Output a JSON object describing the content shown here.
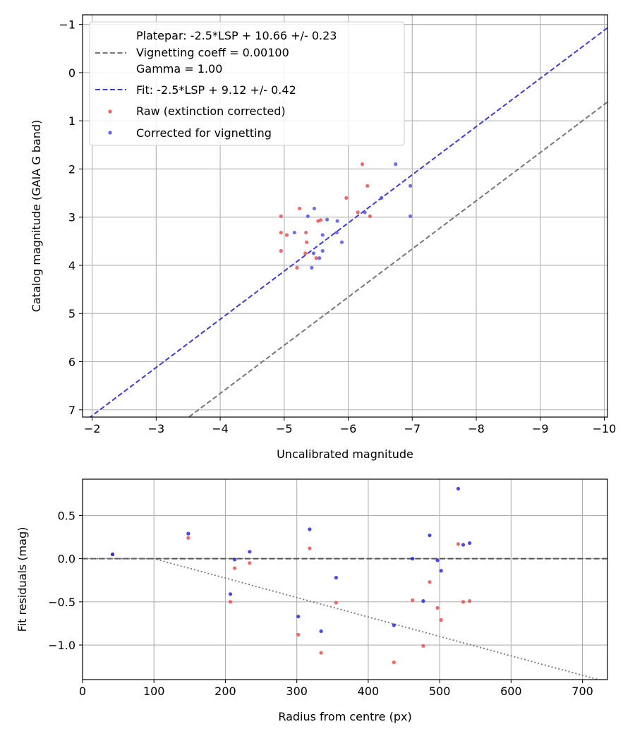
{
  "chart_data": [
    {
      "type": "scatter",
      "xlabel": "Uncalibrated magnitude",
      "ylabel": "Catalog magnitude (GAIA G band)",
      "xlim": [
        -1.85,
        -10.05
      ],
      "ylim": [
        7.15,
        -1.2
      ],
      "grid": true,
      "legend_position": "top-left",
      "x_ticks": [
        -2,
        -3,
        -4,
        -5,
        -6,
        -7,
        -8,
        -9,
        -10
      ],
      "x_tick_labels": [
        "−2",
        "−3",
        "−4",
        "−5",
        "−6",
        "−7",
        "−8",
        "−9",
        "−10"
      ],
      "y_ticks": [
        -1,
        0,
        1,
        2,
        3,
        4,
        5,
        6,
        7
      ],
      "y_tick_labels": [
        "−1",
        "0",
        "1",
        "2",
        "3",
        "4",
        "5",
        "6",
        "7"
      ],
      "legend": [
        "Platepar: -2.5*LSP + 10.66 +/- 0.23",
        "Vignetting coeff = 0.00100",
        "Gamma = 1.00",
        "Fit: -2.5*LSP + 9.12 +/- 0.42",
        "Raw (extinction corrected)",
        "Corrected for vignetting"
      ],
      "lines": [
        {
          "name": "Platepar",
          "slope": 1,
          "intercept": 10.66,
          "color": "#777777",
          "style": "dashed"
        },
        {
          "name": "Fit",
          "slope": 1,
          "intercept": 9.12,
          "color": "#3a3ae8",
          "style": "dashed"
        }
      ],
      "series": [
        {
          "name": "Raw (extinction corrected)",
          "color": "#ee4444",
          "points": [
            [
              -6.22,
              1.9
            ],
            [
              -6.3,
              2.35
            ],
            [
              -5.97,
              2.6
            ],
            [
              -6.15,
              2.9
            ],
            [
              -6.34,
              2.98
            ],
            [
              -5.24,
              2.82
            ],
            [
              -4.95,
              2.98
            ],
            [
              -5.53,
              3.08
            ],
            [
              -5.57,
              3.06
            ],
            [
              -4.95,
              3.32
            ],
            [
              -5.04,
              3.37
            ],
            [
              -5.34,
              3.32
            ],
            [
              -5.35,
              3.52
            ],
            [
              -4.95,
              3.7
            ],
            [
              -5.33,
              3.75
            ],
            [
              -5.5,
              3.85
            ],
            [
              -5.2,
              4.05
            ]
          ]
        },
        {
          "name": "Corrected for vignetting",
          "color": "#4a4aee",
          "points": [
            [
              -6.74,
              1.9
            ],
            [
              -6.97,
              2.35
            ],
            [
              -6.52,
              2.6
            ],
            [
              -6.26,
              2.9
            ],
            [
              -6.97,
              2.98
            ],
            [
              -5.47,
              2.82
            ],
            [
              -5.37,
              2.98
            ],
            [
              -5.67,
              3.05
            ],
            [
              -5.83,
              3.08
            ],
            [
              -5.16,
              3.32
            ],
            [
              -5.6,
              3.37
            ],
            [
              -5.82,
              3.32
            ],
            [
              -5.9,
              3.52
            ],
            [
              -5.6,
              3.7
            ],
            [
              -5.46,
              3.75
            ],
            [
              -5.55,
              3.85
            ],
            [
              -5.43,
              4.05
            ]
          ]
        }
      ]
    },
    {
      "type": "scatter",
      "xlabel": "Radius from centre (px)",
      "ylabel": "Fit residuals (mag)",
      "xlim": [
        0,
        735
      ],
      "ylim": [
        -1.4,
        0.92
      ],
      "grid": true,
      "x_ticks": [
        0,
        100,
        200,
        300,
        400,
        500,
        600,
        700
      ],
      "x_tick_labels": [
        "0",
        "100",
        "200",
        "300",
        "400",
        "500",
        "600",
        "700"
      ],
      "y_ticks": [
        0.5,
        0.0,
        -0.5,
        -1.0
      ],
      "y_tick_labels": [
        "0.5",
        "0.0",
        "−0.5",
        "−1.0"
      ],
      "reference_lines": [
        {
          "name": "zero",
          "value": 0.0,
          "color": "#555555",
          "style": "dashed"
        },
        {
          "name": "vignetting",
          "coeff": 0.001,
          "color": "#777777",
          "style": "dotted"
        }
      ],
      "series": [
        {
          "name": "Raw",
          "color": "#ee4444",
          "points": [
            [
              42,
              0.05
            ],
            [
              148,
              0.24
            ],
            [
              207,
              -0.5
            ],
            [
              213,
              -0.11
            ],
            [
              234,
              -0.05
            ],
            [
              302,
              -0.88
            ],
            [
              318,
              0.12
            ],
            [
              334,
              -1.09
            ],
            [
              355,
              -0.51
            ],
            [
              436,
              -1.2
            ],
            [
              462,
              -0.48
            ],
            [
              477,
              -1.01
            ],
            [
              486,
              -0.27
            ],
            [
              497,
              -0.57
            ],
            [
              502,
              -0.71
            ],
            [
              526,
              0.17
            ],
            [
              533,
              -0.5
            ],
            [
              542,
              -0.49
            ]
          ]
        },
        {
          "name": "Corrected",
          "color": "#1a1aee",
          "points": [
            [
              42,
              0.05
            ],
            [
              148,
              0.29
            ],
            [
              207,
              -0.41
            ],
            [
              213,
              -0.01
            ],
            [
              234,
              0.08
            ],
            [
              302,
              -0.67
            ],
            [
              318,
              0.34
            ],
            [
              334,
              -0.84
            ],
            [
              355,
              -0.22
            ],
            [
              436,
              -0.77
            ],
            [
              462,
              0.0
            ],
            [
              477,
              -0.49
            ],
            [
              486,
              0.27
            ],
            [
              497,
              -0.02
            ],
            [
              502,
              -0.14
            ],
            [
              526,
              0.81
            ],
            [
              533,
              0.16
            ],
            [
              542,
              0.18
            ]
          ]
        }
      ]
    }
  ]
}
